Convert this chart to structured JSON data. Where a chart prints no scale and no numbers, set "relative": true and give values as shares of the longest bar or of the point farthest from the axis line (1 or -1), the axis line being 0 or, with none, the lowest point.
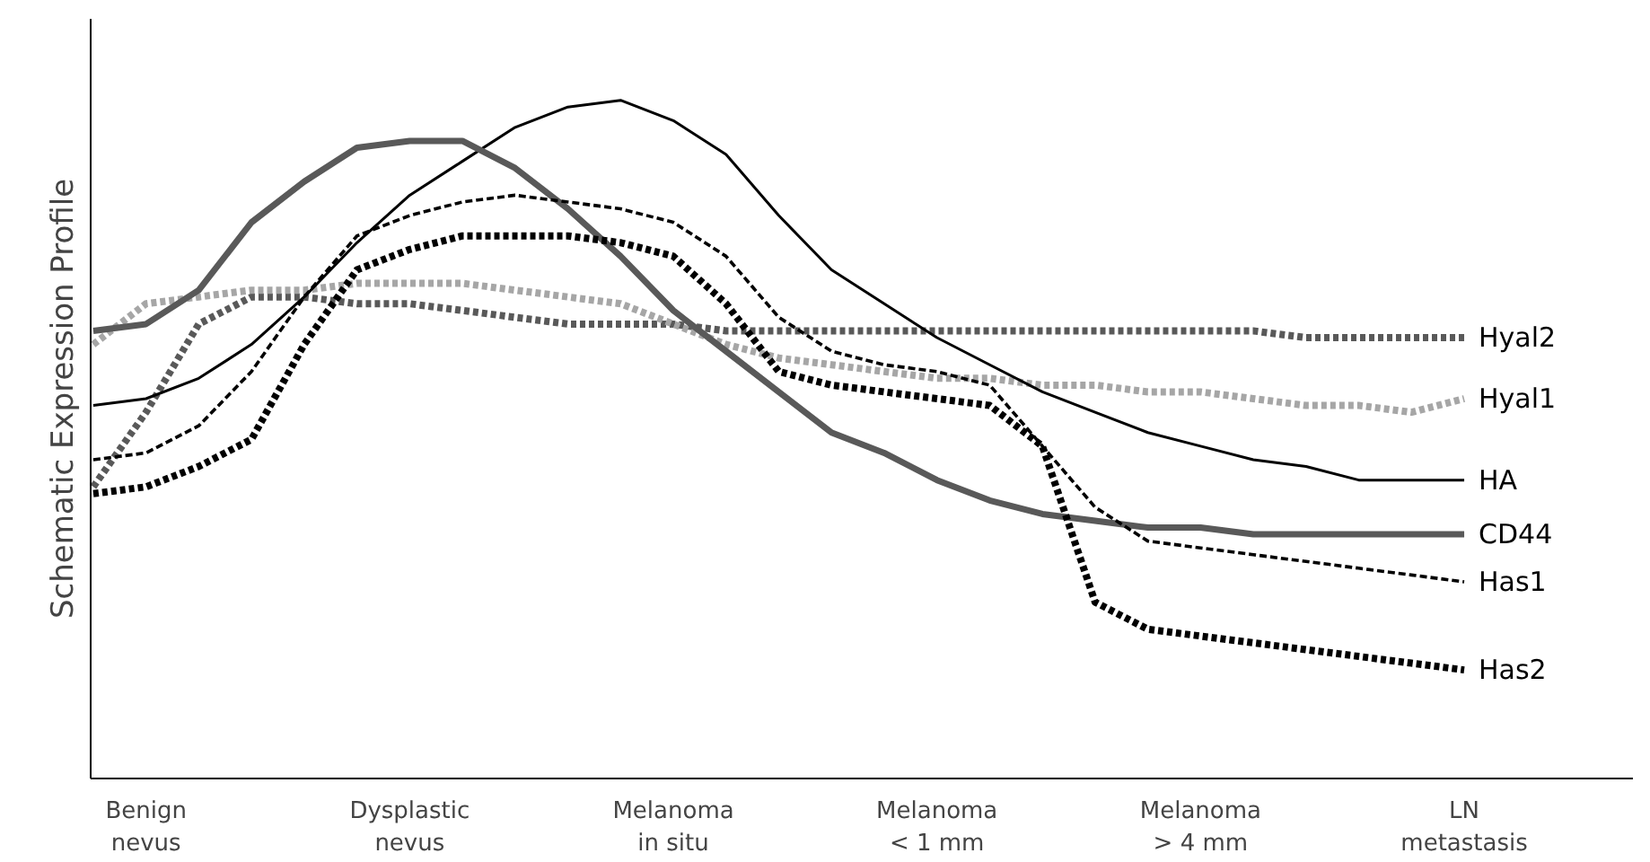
{
  "chart_data": {
    "type": "line",
    "relative": true,
    "ylabel": "Schematic Expression Profile",
    "legend": false,
    "marker": "none",
    "categories": [
      null,
      "Benign\nnevus",
      null,
      null,
      null,
      null,
      "Dysplastic\nnevus",
      null,
      null,
      null,
      null,
      "Melanoma\nin situ",
      null,
      null,
      null,
      null,
      "Melanoma\n< 1 mm",
      null,
      null,
      null,
      null,
      "Melanoma\n> 4 mm",
      null,
      null,
      null,
      null,
      "LN\nmetastasis"
    ],
    "series": [
      {
        "name": "Hyal2",
        "color": "#595959",
        "line_style": "dotted",
        "values": [
          0.43,
          0.54,
          0.67,
          0.71,
          0.71,
          0.7,
          0.7,
          0.69,
          0.68,
          0.67,
          0.67,
          0.67,
          0.66,
          0.66,
          0.66,
          0.66,
          0.66,
          0.66,
          0.66,
          0.66,
          0.66,
          0.66,
          0.66,
          0.65,
          0.65,
          0.65,
          0.65
        ]
      },
      {
        "name": "Hyal1",
        "color": "#a6a6a6",
        "line_style": "dotted",
        "values": [
          0.64,
          0.7,
          0.71,
          0.72,
          0.72,
          0.73,
          0.73,
          0.73,
          0.72,
          0.71,
          0.7,
          0.67,
          0.64,
          0.62,
          0.61,
          0.6,
          0.59,
          0.59,
          0.58,
          0.58,
          0.57,
          0.57,
          0.56,
          0.55,
          0.55,
          0.54,
          0.56
        ]
      },
      {
        "name": "HA",
        "color": "#000000",
        "line_style": "solid",
        "values": [
          0.55,
          0.56,
          0.59,
          0.64,
          0.71,
          0.79,
          0.86,
          0.91,
          0.96,
          0.99,
          1.0,
          0.97,
          0.92,
          0.83,
          0.75,
          0.7,
          0.65,
          0.61,
          0.57,
          0.54,
          0.51,
          0.49,
          0.47,
          0.46,
          0.44,
          0.44,
          0.44
        ]
      },
      {
        "name": "CD44",
        "color": "#595959",
        "line_style": "solid",
        "values": [
          0.66,
          0.67,
          0.72,
          0.82,
          0.88,
          0.93,
          0.94,
          0.94,
          0.9,
          0.84,
          0.77,
          0.69,
          0.63,
          0.57,
          0.51,
          0.48,
          0.44,
          0.41,
          0.39,
          0.38,
          0.37,
          0.37,
          0.36,
          0.36,
          0.36,
          0.36,
          0.36
        ]
      },
      {
        "name": "Has1",
        "color": "#000000",
        "line_style": "dashed",
        "values": [
          0.47,
          0.48,
          0.52,
          0.6,
          0.71,
          0.8,
          0.83,
          0.85,
          0.86,
          0.85,
          0.84,
          0.82,
          0.77,
          0.68,
          0.63,
          0.61,
          0.6,
          0.58,
          0.49,
          0.4,
          0.35,
          0.34,
          0.33,
          0.32,
          0.31,
          0.3,
          0.29
        ]
      },
      {
        "name": "Has2",
        "color": "#000000",
        "line_style": "dotted",
        "values": [
          0.42,
          0.43,
          0.46,
          0.5,
          0.64,
          0.75,
          0.78,
          0.8,
          0.8,
          0.8,
          0.79,
          0.77,
          0.7,
          0.6,
          0.58,
          0.57,
          0.56,
          0.55,
          0.49,
          0.26,
          0.22,
          0.21,
          0.2,
          0.19,
          0.18,
          0.17,
          0.16
        ]
      }
    ]
  }
}
